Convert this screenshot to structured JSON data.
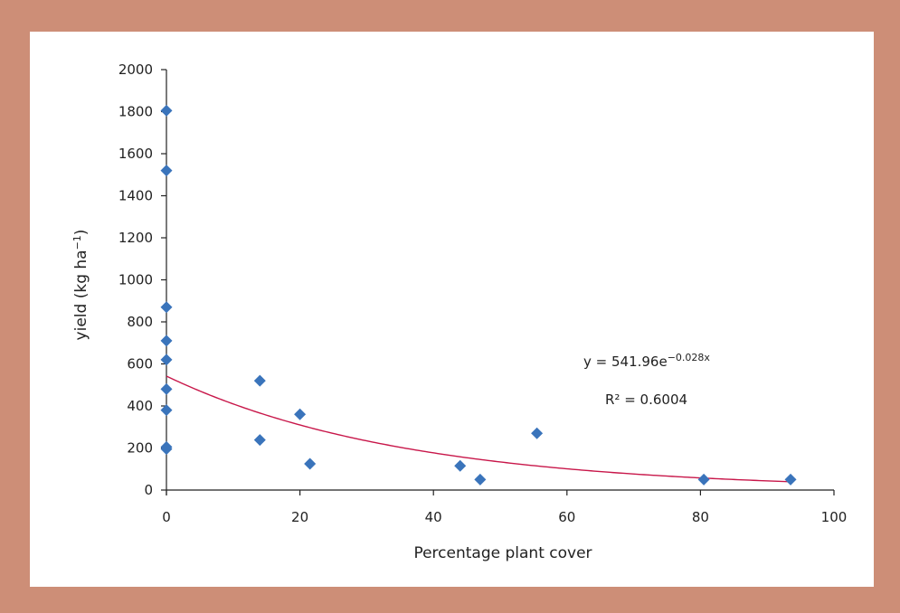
{
  "chart_data": {
    "type": "scatter",
    "title": "",
    "xlabel": "Percentage plant cover",
    "ylabel_main": "yield (kg ha",
    "ylabel_sup": "−1",
    "ylabel_close": ")",
    "xlim": [
      0,
      100
    ],
    "ylim": [
      0,
      2000
    ],
    "x_ticks": [
      0,
      20,
      40,
      60,
      80,
      100
    ],
    "x_tick_labels": [
      "0",
      "20",
      "40",
      "60",
      "80",
      "100"
    ],
    "y_ticks": [
      0,
      200,
      400,
      600,
      800,
      1000,
      1200,
      1400,
      1600,
      1800,
      2000
    ],
    "y_tick_labels": [
      "0",
      "200",
      "400",
      "600",
      "800",
      "1000",
      "1200",
      "1400",
      "1600",
      "1800",
      "2000"
    ],
    "points": [
      {
        "x": 0,
        "y": 1805
      },
      {
        "x": 0,
        "y": 1520
      },
      {
        "x": 0,
        "y": 870
      },
      {
        "x": 0,
        "y": 710
      },
      {
        "x": 0,
        "y": 620
      },
      {
        "x": 0,
        "y": 480
      },
      {
        "x": 0,
        "y": 380
      },
      {
        "x": 0,
        "y": 205
      },
      {
        "x": 0,
        "y": 195
      },
      {
        "x": 14,
        "y": 520
      },
      {
        "x": 14,
        "y": 238
      },
      {
        "x": 20,
        "y": 360
      },
      {
        "x": 21.5,
        "y": 125
      },
      {
        "x": 44,
        "y": 115
      },
      {
        "x": 47,
        "y": 50
      },
      {
        "x": 55.5,
        "y": 270
      },
      {
        "x": 80.5,
        "y": 50
      },
      {
        "x": 93.5,
        "y": 50
      }
    ],
    "trendline": {
      "type": "exponential",
      "a": 541.96,
      "b": -0.028
    },
    "equation_main": "y = 541.96e",
    "equation_sup": "−0.028x",
    "r_squared": "R² = 0.6004",
    "colors": {
      "marker": "#3a74bb",
      "trendline": "#c8174a",
      "axis": "#222222",
      "frame": "#cd8e77",
      "plot_bg": "#ffffff"
    }
  }
}
